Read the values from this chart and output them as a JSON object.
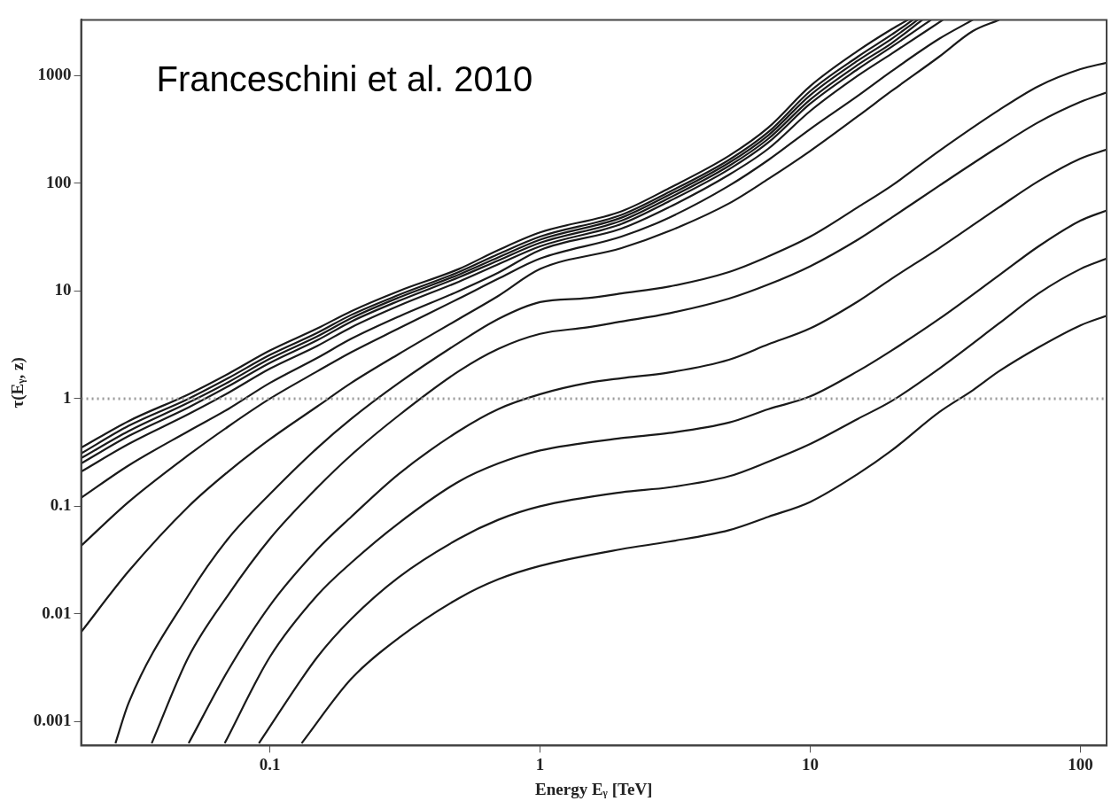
{
  "chart_data": {
    "type": "line",
    "xlabel": "Energy Eᵧ [TeV]",
    "ylabel": "τ(Eᵧ, z)",
    "log": "xy",
    "grid": false,
    "legend": false,
    "marker": "none",
    "line_style": "solid",
    "xlim": [
      0.02,
      125
    ],
    "ylim": [
      0.00063,
      3300
    ],
    "xticks": [
      0.1,
      1,
      10,
      100
    ],
    "yticks": [
      0.001,
      0.01,
      0.1,
      1,
      10,
      100,
      1000
    ],
    "ref_lines": [
      {
        "axis": "y",
        "value": 1,
        "color": "#9a9a9a",
        "line_style": "dotted"
      }
    ],
    "annotations": [
      "Franceschini et al. 2010"
    ],
    "series": [
      {
        "color": "#1a1a1a",
        "x": [
          0.02,
          0.03,
          0.05,
          0.07,
          0.1,
          0.15,
          0.2,
          0.3,
          0.5,
          0.7,
          1,
          2,
          3,
          5,
          7,
          10,
          15,
          20,
          23
        ],
        "values": [
          0.35,
          0.62,
          1.1,
          1.7,
          2.8,
          4.5,
          6.5,
          10,
          16,
          24,
          35,
          55,
          90,
          180,
          330,
          800,
          1700,
          2700,
          3300
        ]
      },
      {
        "color": "#1a1a1a",
        "x": [
          0.02,
          0.03,
          0.05,
          0.07,
          0.1,
          0.15,
          0.2,
          0.3,
          0.5,
          0.7,
          1,
          2,
          3,
          5,
          7,
          10,
          15,
          20,
          24
        ],
        "values": [
          0.31,
          0.56,
          1.0,
          1.55,
          2.55,
          4.1,
          6,
          9.2,
          15,
          22,
          32,
          51,
          83,
          165,
          300,
          720,
          1500,
          2400,
          3300
        ]
      },
      {
        "color": "#1a1a1a",
        "x": [
          0.02,
          0.03,
          0.05,
          0.07,
          0.1,
          0.15,
          0.2,
          0.3,
          0.5,
          0.7,
          1,
          2,
          3,
          5,
          7,
          10,
          15,
          20,
          25
        ],
        "values": [
          0.28,
          0.5,
          0.92,
          1.42,
          2.35,
          3.8,
          5.6,
          8.7,
          14.2,
          20.5,
          30,
          48,
          78,
          155,
          280,
          660,
          1380,
          2200,
          3300
        ]
      },
      {
        "color": "#1a1a1a",
        "x": [
          0.02,
          0.03,
          0.05,
          0.07,
          0.1,
          0.15,
          0.2,
          0.3,
          0.5,
          0.7,
          1,
          2,
          3,
          5,
          7,
          10,
          15,
          20,
          26
        ],
        "values": [
          0.25,
          0.45,
          0.83,
          1.3,
          2.15,
          3.5,
          5.2,
          8.1,
          13.4,
          19.2,
          28,
          45,
          73,
          145,
          260,
          600,
          1260,
          2000,
          3300
        ]
      },
      {
        "color": "#1a1a1a",
        "x": [
          0.02,
          0.03,
          0.05,
          0.07,
          0.1,
          0.15,
          0.2,
          0.3,
          0.5,
          0.7,
          1,
          2,
          3,
          5,
          7,
          10,
          15,
          20,
          28
        ],
        "values": [
          0.21,
          0.38,
          0.72,
          1.13,
          1.9,
          3.1,
          4.6,
          7.3,
          12.2,
          17.7,
          26,
          42,
          68,
          135,
          240,
          550,
          1150,
          1850,
          3300
        ]
      },
      {
        "color": "#1a1a1a",
        "x": [
          0.02,
          0.03,
          0.05,
          0.07,
          0.1,
          0.15,
          0.2,
          0.3,
          0.5,
          0.7,
          1,
          2,
          3,
          5,
          7,
          10,
          15,
          20,
          31
        ],
        "values": [
          0.12,
          0.24,
          0.5,
          0.8,
          1.4,
          2.4,
          3.6,
          5.8,
          10,
          14.8,
          24,
          38,
          60,
          120,
          210,
          470,
          1000,
          1600,
          3300
        ]
      },
      {
        "color": "#1a1a1a",
        "x": [
          0.02,
          0.03,
          0.05,
          0.07,
          0.1,
          0.15,
          0.2,
          0.3,
          0.5,
          0.7,
          1,
          2,
          3,
          5,
          7,
          10,
          15,
          20,
          30,
          40
        ],
        "values": [
          0.043,
          0.11,
          0.3,
          0.55,
          1,
          1.8,
          2.7,
          4.5,
          8.5,
          13,
          20,
          32,
          48,
          95,
          165,
          320,
          650,
          1100,
          2200,
          3300
        ]
      },
      {
        "color": "#1a1a1a",
        "x": [
          0.02,
          0.03,
          0.05,
          0.07,
          0.1,
          0.15,
          0.2,
          0.3,
          0.5,
          0.7,
          1,
          2,
          3,
          5,
          7,
          10,
          15,
          20,
          30,
          40,
          50
        ],
        "values": [
          0.0068,
          0.025,
          0.1,
          0.21,
          0.42,
          0.85,
          1.4,
          2.6,
          5.5,
          9,
          16,
          25,
          36,
          65,
          110,
          200,
          420,
          720,
          1500,
          2600,
          3300
        ]
      },
      {
        "color": "#1a1a1a",
        "x": [
          0.0268,
          0.03,
          0.05,
          0.07,
          0.1,
          0.15,
          0.2,
          0.3,
          0.5,
          0.7,
          1,
          1.5,
          2,
          3,
          5,
          7,
          10,
          15,
          20,
          30,
          50,
          70,
          100,
          125
        ],
        "values": [
          0.00063,
          0.0015,
          0.015,
          0.05,
          0.13,
          0.35,
          0.65,
          1.4,
          3.3,
          5.5,
          7.9,
          8.6,
          9.5,
          11,
          15,
          21,
          32,
          60,
          95,
          200,
          480,
          800,
          1150,
          1320
        ]
      },
      {
        "color": "#1a1a1a",
        "x": [
          0.0365,
          0.05,
          0.07,
          0.1,
          0.15,
          0.2,
          0.3,
          0.5,
          0.7,
          1,
          1.5,
          2,
          3,
          5,
          7,
          10,
          15,
          20,
          30,
          50,
          70,
          100,
          125
        ],
        "values": [
          0.00063,
          0.004,
          0.015,
          0.05,
          0.15,
          0.3,
          0.7,
          1.8,
          2.9,
          4,
          4.6,
          5.2,
          6.2,
          8.5,
          11.5,
          17,
          30,
          48,
          95,
          220,
          370,
          570,
          700
        ]
      },
      {
        "color": "#1a1a1a",
        "x": [
          0.05,
          0.07,
          0.1,
          0.15,
          0.2,
          0.3,
          0.5,
          0.7,
          1,
          1.5,
          2,
          3,
          5,
          7,
          10,
          15,
          20,
          30,
          50,
          70,
          100,
          125
        ],
        "values": [
          0.00063,
          0.003,
          0.012,
          0.04,
          0.08,
          0.2,
          0.5,
          0.8,
          1.1,
          1.4,
          1.55,
          1.75,
          2.3,
          3.2,
          4.5,
          8,
          13,
          25,
          60,
          105,
          170,
          206
        ]
      },
      {
        "color": "#1a1a1a",
        "x": [
          0.068,
          0.1,
          0.15,
          0.2,
          0.3,
          0.5,
          0.7,
          1,
          2,
          3,
          5,
          7,
          10,
          15,
          20,
          30,
          50,
          70,
          100,
          125
        ],
        "values": [
          0.00063,
          0.004,
          0.015,
          0.03,
          0.07,
          0.17,
          0.25,
          0.33,
          0.43,
          0.48,
          0.6,
          0.8,
          1.05,
          1.8,
          2.8,
          5.5,
          14,
          26,
          45,
          56
        ]
      },
      {
        "color": "#1a1a1a",
        "x": [
          0.091,
          0.15,
          0.2,
          0.3,
          0.5,
          0.7,
          1,
          2,
          3,
          5,
          7,
          10,
          15,
          20,
          30,
          50,
          70,
          100,
          125
        ],
        "values": [
          0.00063,
          0.004,
          0.009,
          0.022,
          0.05,
          0.075,
          0.1,
          0.135,
          0.15,
          0.19,
          0.26,
          0.38,
          0.65,
          0.95,
          1.9,
          5,
          9.5,
          16,
          20
        ]
      },
      {
        "color": "#1a1a1a",
        "x": [
          0.131,
          0.2,
          0.3,
          0.5,
          0.7,
          1,
          2,
          3,
          5,
          7,
          10,
          15,
          20,
          30,
          40,
          50,
          70,
          100,
          125
        ],
        "values": [
          0.00063,
          0.0025,
          0.006,
          0.014,
          0.021,
          0.028,
          0.04,
          0.047,
          0.06,
          0.08,
          0.11,
          0.2,
          0.33,
          0.75,
          1.2,
          1.8,
          3,
          4.8,
          5.9
        ]
      }
    ]
  }
}
